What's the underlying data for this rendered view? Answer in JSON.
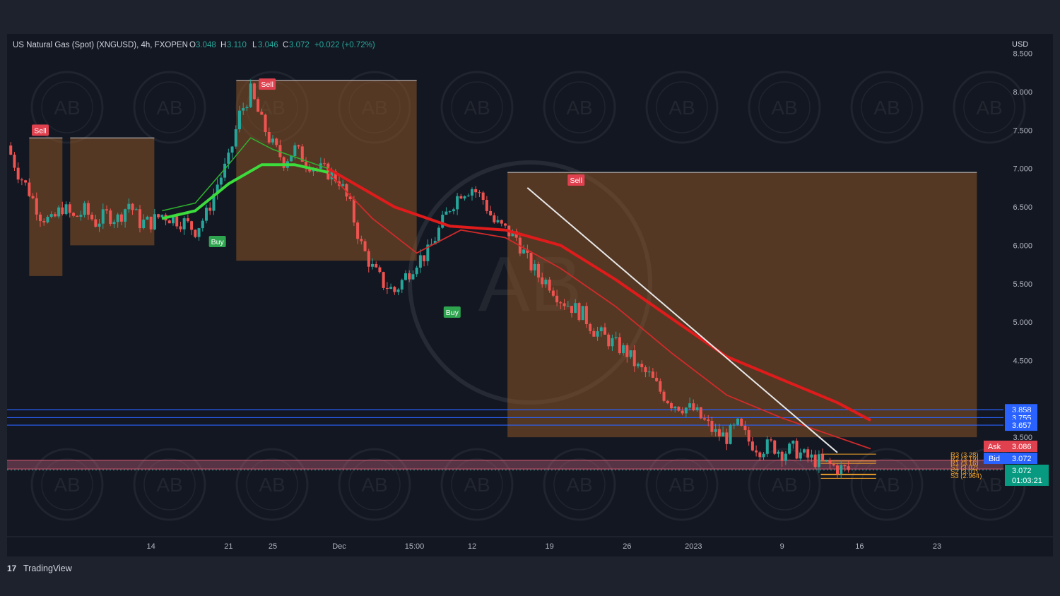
{
  "header": {
    "symbol": "US Natural Gas (Spot) (XNGUSD), 4h, FXOPEN",
    "o_label": "O",
    "o_value": "3.048",
    "h_label": "H",
    "h_value": "3.110",
    "l_label": "L",
    "l_value": "3.046",
    "c_label": "C",
    "c_value": "3.072",
    "change": "+0.022 (+0.72%)"
  },
  "axis": {
    "currency": "USD",
    "y_ticks": [
      "8.500",
      "8.000",
      "7.500",
      "7.000",
      "6.500",
      "6.000",
      "5.500",
      "5.000",
      "4.500",
      "3.500"
    ],
    "x_ticks": [
      {
        "label": "14",
        "x": 13
      },
      {
        "label": "21",
        "x": 20
      },
      {
        "label": "25",
        "x": 24
      },
      {
        "label": "Dec",
        "x": 30
      },
      {
        "label": "15:00",
        "x": 36.8
      },
      {
        "label": "12",
        "x": 42
      },
      {
        "label": "19",
        "x": 49
      },
      {
        "label": "26",
        "x": 56
      },
      {
        "label": "2023",
        "x": 62
      },
      {
        "label": "9",
        "x": 70
      },
      {
        "label": "16",
        "x": 77
      },
      {
        "label": "23",
        "x": 84
      }
    ]
  },
  "price_tags": {
    "r_levels": [
      "3.858",
      "3.755",
      "3.657"
    ],
    "ask_label": "Ask",
    "ask_value": "3.086",
    "bid_label": "Bid",
    "bid_value": "3.072",
    "last_value": "3.072",
    "countdown": "01:03:21"
  },
  "pivots": [
    "R3 (3.28)",
    "R2 (3.19)",
    "R1 (3.16)",
    "S1 (3.02)",
    "S2 (3.01)",
    "S3 (2.964)"
  ],
  "signals": [
    {
      "label": "Sell",
      "x": 3,
      "y": 7.5
    },
    {
      "label": "Sell",
      "x": 23.5,
      "y": 8.1
    },
    {
      "label": "Buy",
      "x": 19,
      "y": 6.05
    },
    {
      "label": "Buy",
      "x": 40.2,
      "y": 5.13
    },
    {
      "label": "Sell",
      "x": 51.4,
      "y": 6.85
    }
  ],
  "colors": {
    "background": "#131722",
    "up": "#26a69a",
    "down": "#ef5350",
    "ema_red": "#e01b1b",
    "ema_green": "#3ddc3d",
    "box_orange": "#8a5426",
    "level_blue": "#2962ff",
    "tag_blue": "#2962ff",
    "tag_red": "#e0414f",
    "tag_green": "#089981"
  },
  "chart_data": {
    "type": "candlestick",
    "title": "US Natural Gas (Spot) (XNGUSD), 4h, FXOPEN",
    "ylabel": "USD",
    "ylim": [
      2.8,
      8.5
    ],
    "x_range": [
      0,
      90
    ],
    "close_path": [
      {
        "x": 0,
        "y": 7.3
      },
      {
        "x": 1,
        "y": 6.95
      },
      {
        "x": 2,
        "y": 6.7
      },
      {
        "x": 3,
        "y": 6.4
      },
      {
        "x": 4,
        "y": 6.3
      },
      {
        "x": 5,
        "y": 6.5
      },
      {
        "x": 6,
        "y": 6.35
      },
      {
        "x": 7,
        "y": 6.45
      },
      {
        "x": 8,
        "y": 6.3
      },
      {
        "x": 9,
        "y": 6.4
      },
      {
        "x": 10,
        "y": 6.35
      },
      {
        "x": 11,
        "y": 6.55
      },
      {
        "x": 12,
        "y": 6.3
      },
      {
        "x": 13,
        "y": 6.3
      },
      {
        "x": 14,
        "y": 6.4
      },
      {
        "x": 15,
        "y": 6.35
      },
      {
        "x": 16,
        "y": 6.3
      },
      {
        "x": 17,
        "y": 6.2
      },
      {
        "x": 18,
        "y": 6.4
      },
      {
        "x": 19,
        "y": 6.8
      },
      {
        "x": 20,
        "y": 7.1
      },
      {
        "x": 21,
        "y": 7.7
      },
      {
        "x": 22,
        "y": 8.0
      },
      {
        "x": 23,
        "y": 7.6
      },
      {
        "x": 24,
        "y": 7.3
      },
      {
        "x": 25,
        "y": 7.1
      },
      {
        "x": 26,
        "y": 7.25
      },
      {
        "x": 27,
        "y": 7.1
      },
      {
        "x": 28,
        "y": 7.0
      },
      {
        "x": 29,
        "y": 6.95
      },
      {
        "x": 30,
        "y": 6.85
      },
      {
        "x": 31,
        "y": 6.5
      },
      {
        "x": 32,
        "y": 6.0
      },
      {
        "x": 33,
        "y": 5.7
      },
      {
        "x": 34,
        "y": 5.5
      },
      {
        "x": 35,
        "y": 5.4
      },
      {
        "x": 36,
        "y": 5.6
      },
      {
        "x": 37,
        "y": 5.8
      },
      {
        "x": 38,
        "y": 5.9
      },
      {
        "x": 39,
        "y": 6.2
      },
      {
        "x": 40,
        "y": 6.5
      },
      {
        "x": 41,
        "y": 6.7
      },
      {
        "x": 42,
        "y": 6.75
      },
      {
        "x": 43,
        "y": 6.6
      },
      {
        "x": 44,
        "y": 6.3
      },
      {
        "x": 45,
        "y": 6.2
      },
      {
        "x": 46,
        "y": 6.1
      },
      {
        "x": 47,
        "y": 5.8
      },
      {
        "x": 48,
        "y": 5.6
      },
      {
        "x": 49,
        "y": 5.5
      },
      {
        "x": 50,
        "y": 5.3
      },
      {
        "x": 51,
        "y": 5.2
      },
      {
        "x": 52,
        "y": 5.1
      },
      {
        "x": 53,
        "y": 4.9
      },
      {
        "x": 54,
        "y": 4.8
      },
      {
        "x": 55,
        "y": 4.7
      },
      {
        "x": 56,
        "y": 4.6
      },
      {
        "x": 57,
        "y": 4.4
      },
      {
        "x": 58,
        "y": 4.3
      },
      {
        "x": 59,
        "y": 4.1
      },
      {
        "x": 60,
        "y": 3.95
      },
      {
        "x": 61,
        "y": 3.9
      },
      {
        "x": 62,
        "y": 3.85
      },
      {
        "x": 63,
        "y": 3.7
      },
      {
        "x": 64,
        "y": 3.55
      },
      {
        "x": 65,
        "y": 3.5
      },
      {
        "x": 66,
        "y": 3.65
      },
      {
        "x": 67,
        "y": 3.45
      },
      {
        "x": 68,
        "y": 3.35
      },
      {
        "x": 69,
        "y": 3.4
      },
      {
        "x": 70,
        "y": 3.3
      },
      {
        "x": 71,
        "y": 3.35
      },
      {
        "x": 72,
        "y": 3.25
      },
      {
        "x": 73,
        "y": 3.2
      },
      {
        "x": 74,
        "y": 3.15
      },
      {
        "x": 75,
        "y": 3.1
      },
      {
        "x": 76,
        "y": 3.07
      }
    ],
    "series": [
      {
        "kind": "ema_red_main",
        "points": [
          {
            "x": 29,
            "y": 7.0
          },
          {
            "x": 35,
            "y": 6.5
          },
          {
            "x": 40,
            "y": 6.25
          },
          {
            "x": 45,
            "y": 6.2
          },
          {
            "x": 50,
            "y": 6.0
          },
          {
            "x": 55,
            "y": 5.55
          },
          {
            "x": 60,
            "y": 5.05
          },
          {
            "x": 65,
            "y": 4.55
          },
          {
            "x": 70,
            "y": 4.25
          },
          {
            "x": 75,
            "y": 3.95
          },
          {
            "x": 78,
            "y": 3.72
          }
        ]
      },
      {
        "kind": "ema_red_fast",
        "points": [
          {
            "x": 29,
            "y": 6.95
          },
          {
            "x": 33,
            "y": 6.35
          },
          {
            "x": 37,
            "y": 5.9
          },
          {
            "x": 41,
            "y": 6.2
          },
          {
            "x": 45,
            "y": 6.1
          },
          {
            "x": 50,
            "y": 5.7
          },
          {
            "x": 55,
            "y": 5.2
          },
          {
            "x": 60,
            "y": 4.6
          },
          {
            "x": 65,
            "y": 4.05
          },
          {
            "x": 70,
            "y": 3.75
          },
          {
            "x": 75,
            "y": 3.5
          },
          {
            "x": 78,
            "y": 3.35
          }
        ]
      },
      {
        "kind": "ema_green_main",
        "points": [
          {
            "x": 14,
            "y": 6.35
          },
          {
            "x": 17,
            "y": 6.45
          },
          {
            "x": 20,
            "y": 6.8
          },
          {
            "x": 23,
            "y": 7.05
          },
          {
            "x": 26,
            "y": 7.05
          },
          {
            "x": 29,
            "y": 6.95
          }
        ]
      },
      {
        "kind": "ema_green_fast",
        "points": [
          {
            "x": 14,
            "y": 6.45
          },
          {
            "x": 17,
            "y": 6.55
          },
          {
            "x": 20,
            "y": 7.05
          },
          {
            "x": 22,
            "y": 7.4
          },
          {
            "x": 24,
            "y": 7.25
          },
          {
            "x": 27,
            "y": 7.1
          },
          {
            "x": 29,
            "y": 7.0
          }
        ]
      },
      {
        "kind": "trendline",
        "points": [
          {
            "x": 47,
            "y": 6.75
          },
          {
            "x": 75,
            "y": 3.3
          }
        ]
      }
    ],
    "zones": [
      {
        "x0": 2,
        "x1": 5,
        "y0": 5.6,
        "y1": 7.4
      },
      {
        "x0": 5.7,
        "x1": 13.3,
        "y0": 6.0,
        "y1": 7.4
      },
      {
        "x0": 20.7,
        "x1": 37,
        "y0": 5.8,
        "y1": 8.15
      },
      {
        "x0": 45.2,
        "x1": 87.6,
        "y0": 3.5,
        "y1": 6.95
      }
    ],
    "levels": [
      3.858,
      3.755,
      3.657
    ],
    "bid_ask_band": [
      3.072,
      3.086
    ],
    "pivots": [
      3.28,
      3.19,
      3.16,
      3.02,
      3.01,
      2.964
    ]
  },
  "watermark": {
    "text": "AB"
  },
  "footer": {
    "brand": "TradingView"
  }
}
